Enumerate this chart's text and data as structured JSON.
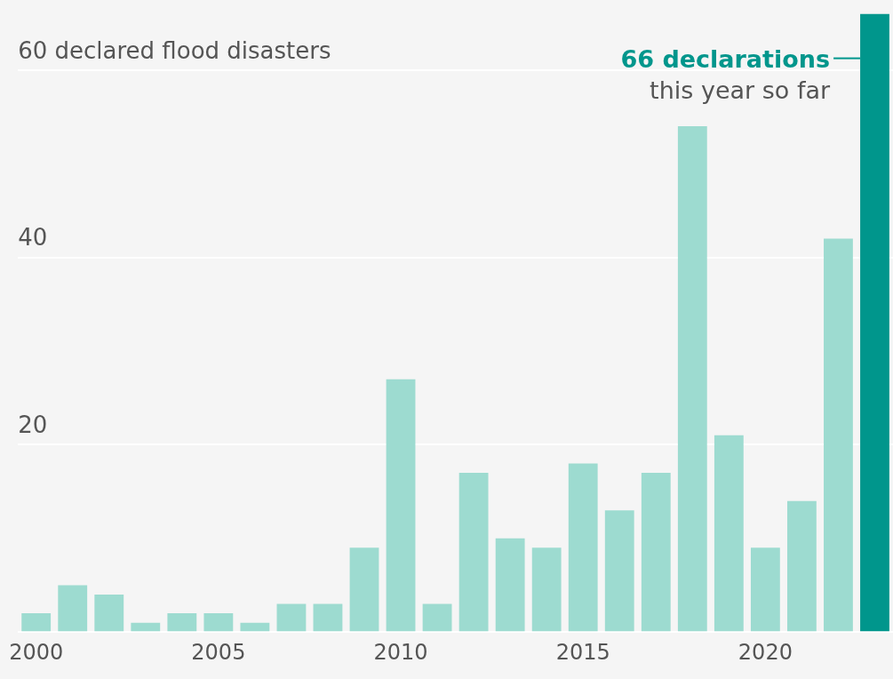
{
  "chart_data": {
    "type": "bar",
    "categories": [
      "2000",
      null,
      null,
      null,
      null,
      "2005",
      null,
      null,
      null,
      null,
      "2010",
      null,
      null,
      null,
      null,
      "2015",
      null,
      null,
      null,
      null,
      "2020",
      null,
      null,
      null
    ],
    "values": [
      2,
      5,
      4,
      1,
      2,
      2,
      1,
      3,
      3,
      9,
      27,
      3,
      17,
      10,
      9,
      18,
      13,
      17,
      54,
      21,
      9,
      14,
      42,
      66
    ],
    "colors": [
      "#9ddbd0",
      "#9ddbd0",
      "#9ddbd0",
      "#9ddbd0",
      "#9ddbd0",
      "#9ddbd0",
      "#9ddbd0",
      "#9ddbd0",
      "#9ddbd0",
      "#9ddbd0",
      "#9ddbd0",
      "#9ddbd0",
      "#9ddbd0",
      "#9ddbd0",
      "#9ddbd0",
      "#9ddbd0",
      "#9ddbd0",
      "#9ddbd0",
      "#9ddbd0",
      "#9ddbd0",
      "#9ddbd0",
      "#9ddbd0",
      "#9ddbd0",
      "#00968c"
    ],
    "ylim": [
      0,
      66
    ],
    "yticks": [
      {
        "value": 0,
        "label": null
      },
      20,
      40,
      {
        "value": 60,
        "label": "60 declared flood disasters"
      }
    ],
    "grid": "y",
    "legend": false,
    "annotations": [
      "66 declarations\nthis year so far"
    ]
  }
}
